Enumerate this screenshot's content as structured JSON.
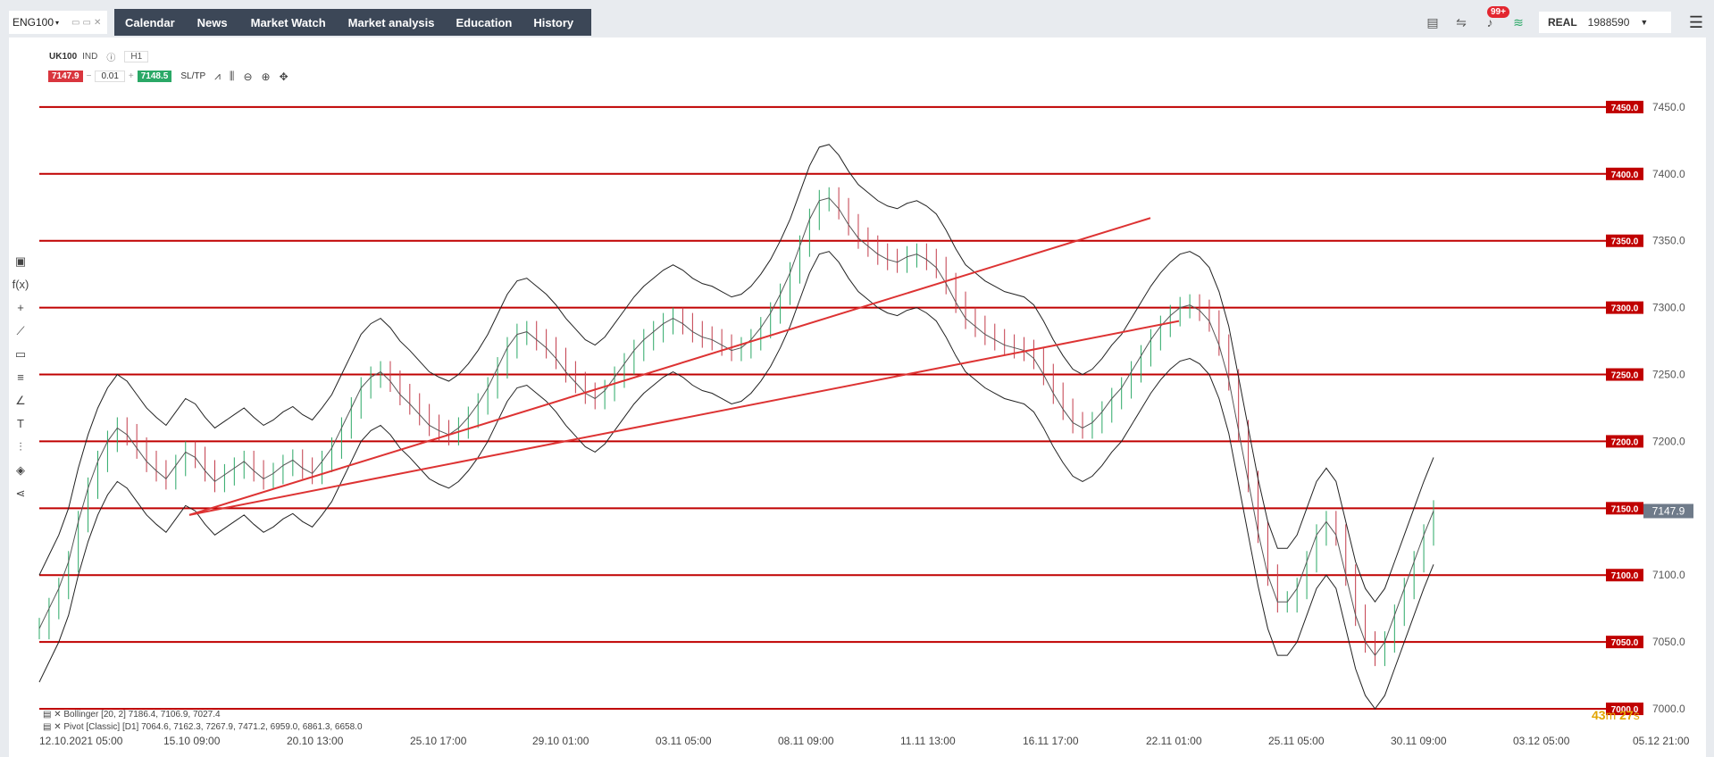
{
  "symbol_tab": {
    "label": "ENG100"
  },
  "nav": [
    "Calendar",
    "News",
    "Market Watch",
    "Market analysis",
    "Education",
    "History"
  ],
  "notifications": {
    "badge": "99+"
  },
  "account": {
    "mode": "REAL",
    "number": "1988590"
  },
  "chart_header": {
    "symbol": "UK100",
    "type": "IND",
    "timeframe": "H1"
  },
  "trade": {
    "sell": "7147.9",
    "lot": "0.01",
    "buy": "7148.5",
    "sltp": "SL/TP"
  },
  "indicators": [
    "Bollinger [20, 2] 7186.4, 7106.9, 7027.4",
    "Pivot [Classic] [D1] 7064.6, 7162.3, 7267.9, 7471.2, 6959.0, 6861.3, 6658.0"
  ],
  "countdown": {
    "minutes": "43",
    "seconds": "27"
  },
  "colors": {
    "line_red": "#c00000",
    "label_red": "#c00000",
    "nav_bg": "#3c4757",
    "current_price_bg": "#6f7b8a"
  },
  "chart_data": {
    "type": "line",
    "title": "",
    "y_ticks": [
      7000,
      7050,
      7100,
      7150,
      7200,
      7250,
      7300,
      7350,
      7400,
      7450
    ],
    "y_tick_labels": [
      "7000.0",
      "7050.0",
      "7100.0",
      "7150.0",
      "7200.0",
      "7250.0",
      "7300.0",
      "7350.0",
      "7400.0",
      "7450.0"
    ],
    "y_side_labels": [
      "7000.0",
      "7050.0",
      "7100.0",
      "7200.0",
      "7250.0",
      "7300.0",
      "7350.0",
      "7400.0"
    ],
    "ylim": [
      6968,
      7502
    ],
    "x_tick_labels": [
      "12.10.2021 05:00",
      "15.10 09:00",
      "20.10 13:00",
      "25.10 17:00",
      "29.10 01:00",
      "03.11 05:00",
      "08.11 09:00",
      "11.11 13:00",
      "16.11 17:00",
      "22.11 01:00",
      "25.11 05:00",
      "30.11 09:00",
      "03.12 05:00",
      "05.12 21:00"
    ],
    "current_price": 7147.9,
    "current_price_label": "7147.9",
    "horizontal_levels": [
      7000,
      7050,
      7100,
      7150,
      7200,
      7250,
      7300,
      7350,
      7400,
      7450
    ],
    "close_series": [
      7060,
      7075,
      7090,
      7110,
      7140,
      7165,
      7185,
      7200,
      7210,
      7205,
      7195,
      7185,
      7178,
      7172,
      7182,
      7192,
      7188,
      7178,
      7170,
      7175,
      7180,
      7185,
      7178,
      7172,
      7176,
      7182,
      7186,
      7180,
      7176,
      7185,
      7195,
      7210,
      7225,
      7240,
      7248,
      7252,
      7245,
      7235,
      7228,
      7220,
      7212,
      7208,
      7205,
      7210,
      7218,
      7228,
      7240,
      7255,
      7270,
      7280,
      7282,
      7276,
      7270,
      7262,
      7252,
      7244,
      7236,
      7232,
      7238,
      7248,
      7258,
      7268,
      7276,
      7282,
      7288,
      7292,
      7288,
      7282,
      7278,
      7276,
      7272,
      7268,
      7270,
      7276,
      7285,
      7296,
      7310,
      7326,
      7346,
      7366,
      7380,
      7382,
      7374,
      7362,
      7352,
      7346,
      7340,
      7336,
      7334,
      7338,
      7340,
      7336,
      7330,
      7318,
      7304,
      7292,
      7286,
      7280,
      7276,
      7272,
      7270,
      7268,
      7262,
      7250,
      7236,
      7224,
      7214,
      7210,
      7214,
      7222,
      7232,
      7240,
      7252,
      7264,
      7276,
      7286,
      7294,
      7300,
      7302,
      7298,
      7290,
      7272,
      7246,
      7208,
      7170,
      7132,
      7100,
      7080,
      7080,
      7090,
      7110,
      7130,
      7140,
      7130,
      7100,
      7070,
      7050,
      7040,
      7050,
      7070,
      7090,
      7110,
      7130,
      7148
    ]
  }
}
